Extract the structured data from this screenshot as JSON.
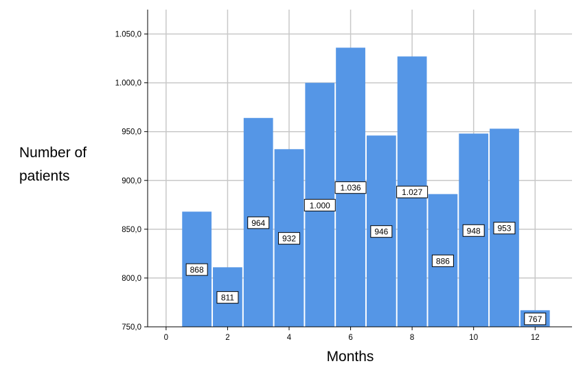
{
  "chart_data": {
    "type": "bar",
    "title": "",
    "xlabel": "Months",
    "ylabel": "Number of patients",
    "x": [
      1,
      2,
      3,
      4,
      5,
      6,
      7,
      8,
      9,
      10,
      11,
      12
    ],
    "values": [
      868,
      811,
      964,
      932,
      1000,
      1036,
      946,
      1027,
      886,
      948,
      953,
      767
    ],
    "data_labels": [
      "868",
      "811",
      "964",
      "932",
      "1.000",
      "1.036",
      "946",
      "1.027",
      "886",
      "948",
      "953",
      "767"
    ],
    "xlim": [
      -0.6,
      13.2
    ],
    "ylim": [
      750,
      1075
    ],
    "xticks": [
      0,
      2,
      4,
      6,
      8,
      10,
      12
    ],
    "xtick_labels": [
      "0",
      "2",
      "4",
      "6",
      "8",
      "10",
      "12"
    ],
    "yticks": [
      750,
      800,
      850,
      900,
      950,
      1000,
      1050
    ],
    "ytick_labels": [
      "750,0",
      "800,0",
      "850,0",
      "900,0",
      "950,0",
      "1.000,0",
      "1.050,0"
    ],
    "grid": true,
    "bar_color": "#5596e6",
    "grid_color": "#c8c8c8"
  }
}
